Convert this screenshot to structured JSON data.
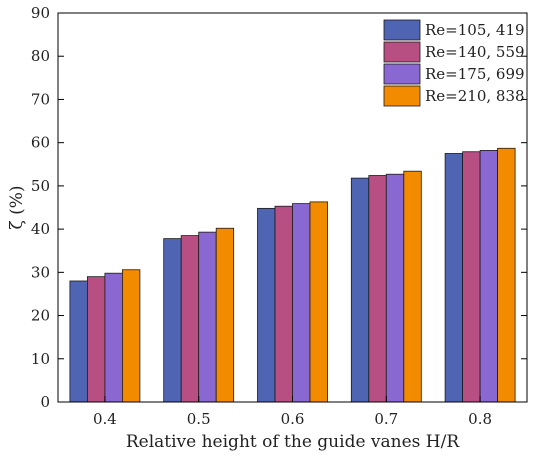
{
  "chart_data": {
    "type": "bar",
    "title": "",
    "xlabel": "Relative height of the guide vanes H/R",
    "ylabel": "ζ (%)",
    "categories": [
      "0.4",
      "0.5",
      "0.6",
      "0.7",
      "0.8"
    ],
    "ylim": [
      0,
      90
    ],
    "yticks": [
      0,
      10,
      20,
      30,
      40,
      50,
      60,
      70,
      80,
      90
    ],
    "grid": false,
    "legend_position": "top-right",
    "series": [
      {
        "name": "Re=105, 419",
        "color": "#5064B4",
        "values": [
          28.0,
          37.8,
          44.8,
          51.8,
          57.5
        ]
      },
      {
        "name": "Re=140, 559",
        "color": "#B84F83",
        "values": [
          29.0,
          38.5,
          45.3,
          52.4,
          57.9
        ]
      },
      {
        "name": "Re=175, 699",
        "color": "#8A68D2",
        "values": [
          29.8,
          39.3,
          45.9,
          52.7,
          58.2
        ]
      },
      {
        "name": "Re=210, 838",
        "color": "#F28B00",
        "values": [
          30.6,
          40.2,
          46.3,
          53.4,
          58.7
        ]
      }
    ]
  }
}
